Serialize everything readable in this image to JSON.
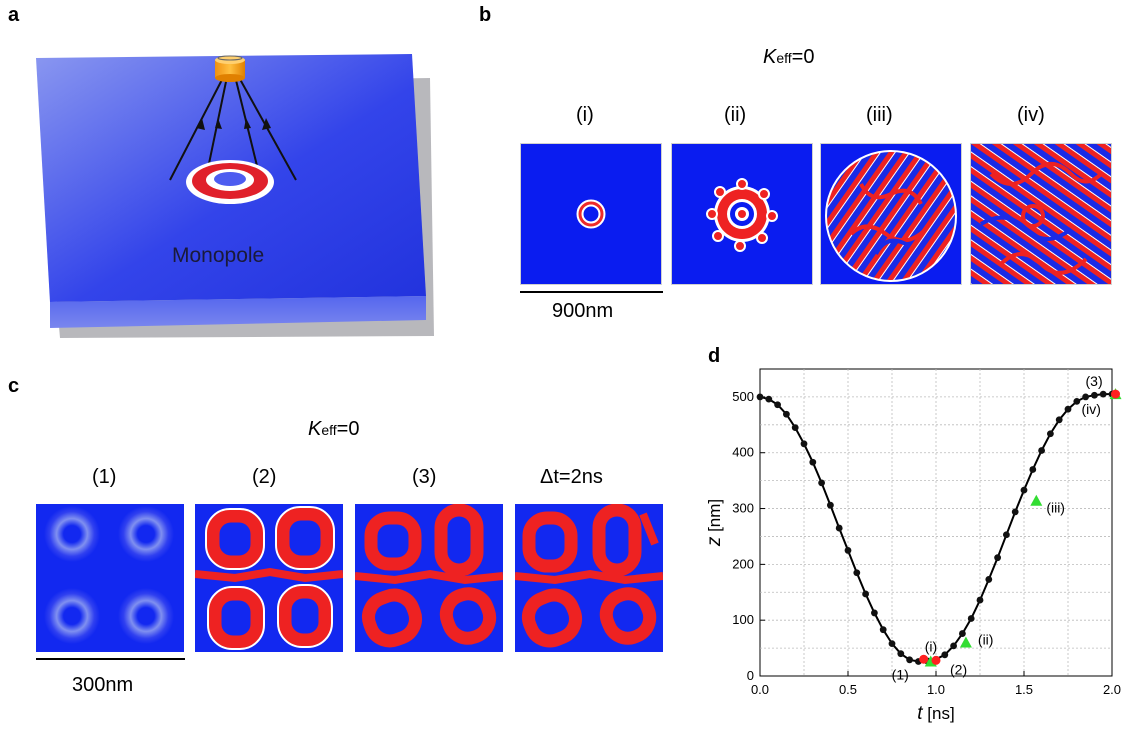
{
  "panel_a": {
    "label": "a",
    "monopole_label": "Monopole"
  },
  "panel_b": {
    "label": "b",
    "k_symbol": "K",
    "k_sub": "eff",
    "k_value": "=0",
    "tile_labels": [
      "(i)",
      "(ii)",
      "(iii)",
      "(iv)"
    ],
    "scale_text": "900nm"
  },
  "panel_c": {
    "label": "c",
    "k_symbol": "K",
    "k_sub": "eff",
    "k_value": "=0",
    "tile_labels": [
      "(1)",
      "(2)",
      "(3)",
      "Δt=2ns"
    ],
    "scale_text": "300nm"
  },
  "panel_d": {
    "label": "d"
  },
  "chart_data": {
    "type": "line",
    "xlabel_symbol": "t",
    "xlabel_unit": " [ns]",
    "ylabel_symbol": "z",
    "ylabel_unit": " [nm]",
    "xlim": [
      0.0,
      2.0
    ],
    "ylim": [
      0,
      550
    ],
    "xticks": [
      0.0,
      0.5,
      1.0,
      1.5,
      2.0
    ],
    "yticks": [
      0,
      100,
      200,
      300,
      400,
      500
    ],
    "grid": true,
    "series": [
      {
        "x": [
          0.0,
          0.05,
          0.1,
          0.15,
          0.2,
          0.25,
          0.3,
          0.35,
          0.4,
          0.45,
          0.5,
          0.55,
          0.6,
          0.65,
          0.7,
          0.75,
          0.8,
          0.85,
          0.9,
          0.95,
          1.0,
          1.05,
          1.1,
          1.15,
          1.2,
          1.25,
          1.3,
          1.35,
          1.4,
          1.45,
          1.5,
          1.55,
          1.6,
          1.65,
          1.7,
          1.75,
          1.8,
          1.85,
          1.9,
          1.95,
          2.0
        ],
        "values": [
          500,
          496,
          486,
          469,
          445,
          416,
          383,
          346,
          306,
          265,
          225,
          185,
          147,
          113,
          83,
          58,
          40,
          29,
          26,
          27,
          30,
          38,
          54,
          76,
          103,
          136,
          173,
          212,
          253,
          294,
          333,
          370,
          404,
          434,
          459,
          478,
          492,
          500,
          503,
          505,
          505
        ]
      }
    ],
    "markers": [
      {
        "label": "(1)",
        "x": 0.93,
        "y": 30,
        "color": "#ff2020",
        "shape": "circle"
      },
      {
        "label": "(i)",
        "x": 0.97,
        "y": 26,
        "color": "#33dd33",
        "shape": "triangle"
      },
      {
        "label": "(2)",
        "x": 1.0,
        "y": 28,
        "color": "#ff2020",
        "shape": "circle"
      },
      {
        "label": "(ii)",
        "x": 1.17,
        "y": 60,
        "color": "#33dd33",
        "shape": "triangle"
      },
      {
        "label": "(iii)",
        "x": 1.57,
        "y": 314,
        "color": "#33dd33",
        "shape": "triangle"
      },
      {
        "label": "(iv)",
        "x": 2.02,
        "y": 505,
        "color": "#33dd33",
        "shape": "triangle"
      },
      {
        "label": "(3)",
        "x": 2.02,
        "y": 505,
        "color": "#ff2020",
        "shape": "circle"
      }
    ]
  }
}
